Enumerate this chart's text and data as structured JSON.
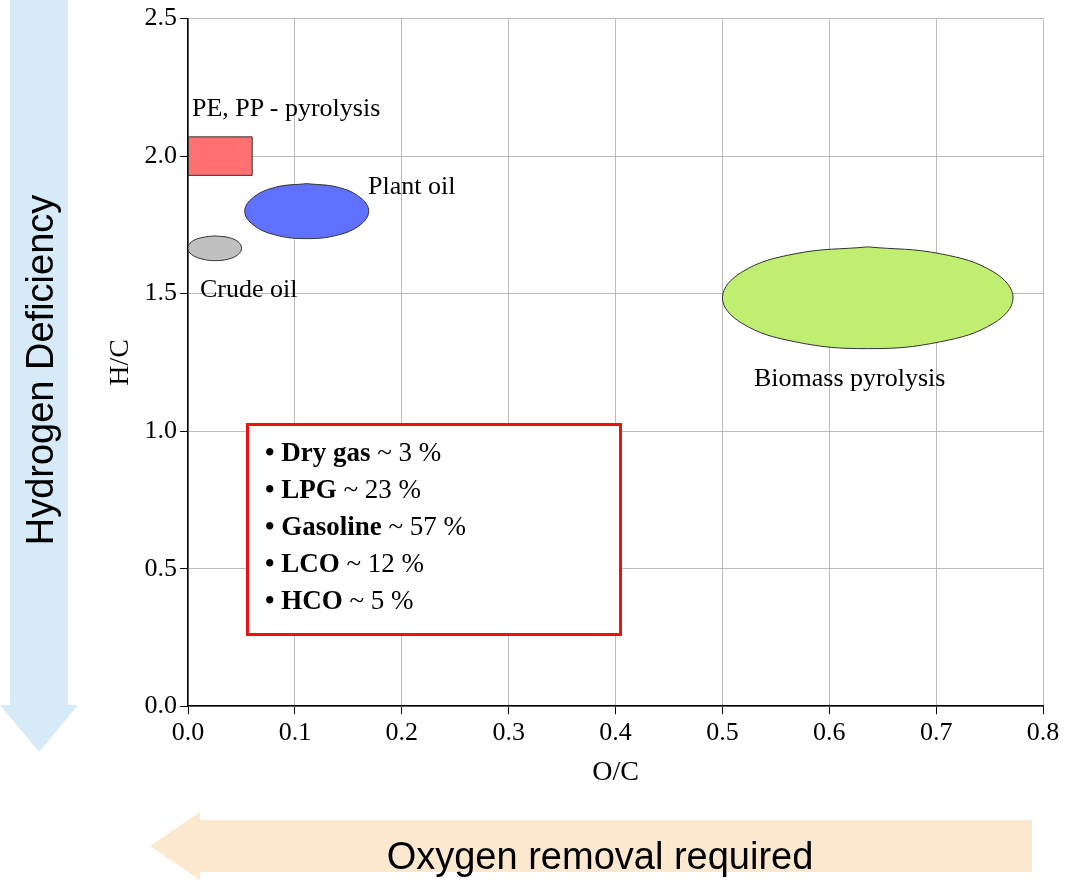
{
  "chart_data": {
    "type": "area",
    "xlabel": "O/C",
    "ylabel": "H/C",
    "xlim": [
      0,
      0.8
    ],
    "ylim": [
      0,
      2.5
    ],
    "xticks": [
      {
        "value": 0,
        "label": "0.0"
      },
      0.1,
      0.2,
      0.3,
      0.4,
      0.5,
      0.6,
      0.7,
      0.8
    ],
    "yticks": [
      {
        "value": 0,
        "label": "0.0"
      },
      0.5,
      {
        "value": 1,
        "label": "1.0"
      },
      1.5,
      {
        "value": 2,
        "label": "2.0"
      },
      2.5
    ],
    "grid": true,
    "legend": false,
    "marker": "none",
    "series": [
      {
        "color": "#ff7070",
        "x": [
          0,
          0.06,
          0.06,
          0,
          0
        ],
        "values": [
          1.93,
          1.93,
          2.07,
          2.07,
          1.93
        ]
      },
      {
        "color": "#6070ff",
        "x": [
          0.111,
          0.082,
          0.061,
          0.053,
          0.061,
          0.082,
          0.111,
          0.14,
          0.161,
          0.169,
          0.161,
          0.14,
          0.111
        ],
        "values": [
          1.9,
          1.887,
          1.85,
          1.8,
          1.75,
          1.713,
          1.7,
          1.713,
          1.75,
          1.8,
          1.85,
          1.887,
          1.9
        ]
      },
      {
        "color": "#c0c0c0",
        "x": [
          0.025,
          0.013,
          0.003,
          0,
          0.003,
          0.013,
          0.025,
          0.038,
          0.047,
          0.05,
          0.047,
          0.038,
          0.025
        ],
        "values": [
          1.71,
          1.704,
          1.688,
          1.665,
          1.643,
          1.626,
          1.62,
          1.626,
          1.643,
          1.665,
          1.688,
          1.704,
          1.71
        ]
      },
      {
        "color": "#bfee70",
        "x": [
          0.636,
          0.568,
          0.518,
          0.5,
          0.518,
          0.568,
          0.636,
          0.704,
          0.754,
          0.772,
          0.754,
          0.704,
          0.636
        ],
        "values": [
          1.67,
          1.645,
          1.578,
          1.485,
          1.393,
          1.325,
          1.3,
          1.325,
          1.393,
          1.485,
          1.578,
          1.645,
          1.67
        ]
      }
    ],
    "annotations": [
      "Hydrogen Deficiency",
      "Oxygen removal required",
      "PE, PP - pyrolysis",
      "Plant oil",
      "Crude oil",
      "Biomass pyrolysis",
      "• Dry gas ~ 3 %",
      "• LPG ~ 23 %",
      "• Gasoline ~ 57 %",
      "• LCO ~ 12 %",
      "• HCO ~ 5 %"
    ]
  }
}
